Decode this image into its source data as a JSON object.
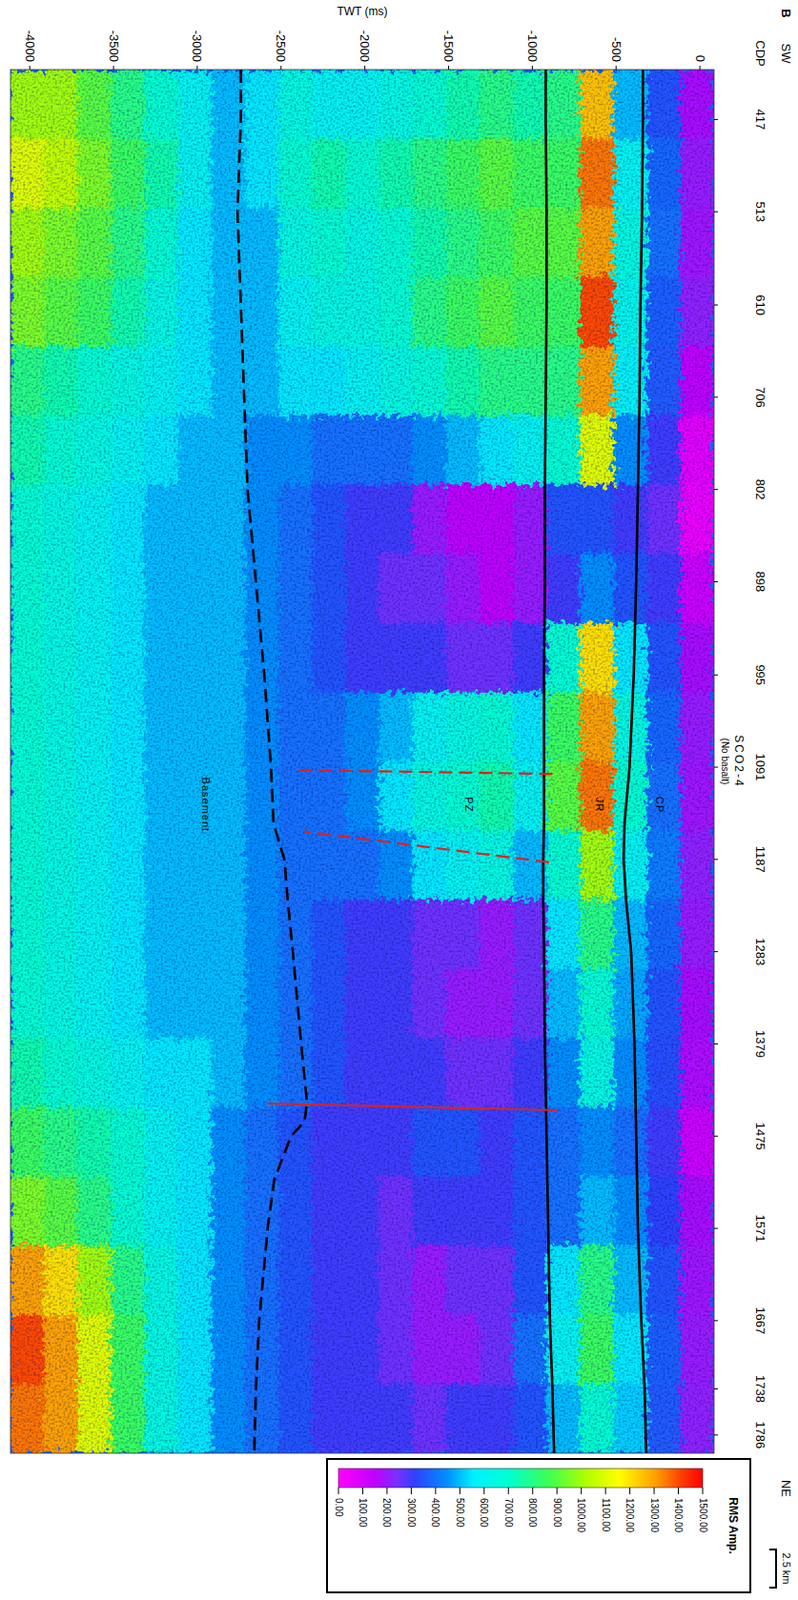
{
  "chart_data": {
    "type": "heatmap",
    "panel_label": "B",
    "title": "SCO2-4",
    "subtitle": "(No basalt)",
    "x_label": "CDP",
    "y_label": "TWT (ms)",
    "direction_labels": [
      "SW",
      "NE"
    ],
    "scale_bar": "2.5 km",
    "xlim": [
      365,
      1805
    ],
    "ylim": [
      -4115,
      85
    ],
    "xticks": [
      417,
      513,
      610,
      706,
      802,
      898,
      995,
      1091,
      1187,
      1283,
      1379,
      1475,
      1571,
      1667,
      1738,
      1786
    ],
    "yticks": [
      -4000,
      -3500,
      -3000,
      -2500,
      -2000,
      -1500,
      -1000,
      -500,
      0
    ],
    "x_bins": [
      365,
      437,
      509,
      581,
      653,
      725,
      797,
      869,
      941,
      1013,
      1085,
      1157,
      1229,
      1301,
      1373,
      1445,
      1517,
      1589,
      1661,
      1733,
      1805
    ],
    "y_bins": [
      85,
      -115,
      -315,
      -515,
      -715,
      -915,
      -1115,
      -1315,
      -1515,
      -1715,
      -1915,
      -2115,
      -2315,
      -2515,
      -2715,
      -2915,
      -3115,
      -3315,
      -3515,
      -3715,
      -3915,
      -4115
    ],
    "cells": [
      [
        180,
        200,
        190,
        210,
        150,
        60,
        40,
        120,
        180,
        200,
        190,
        210,
        200,
        180,
        170,
        120,
        180,
        190,
        200,
        210
      ],
      [
        350,
        380,
        400,
        370,
        360,
        300,
        250,
        300,
        350,
        380,
        400,
        420,
        380,
        350,
        340,
        300,
        320,
        350,
        370,
        360
      ],
      [
        500,
        600,
        650,
        620,
        580,
        450,
        300,
        350,
        550,
        650,
        700,
        600,
        500,
        480,
        450,
        400,
        450,
        500,
        550,
        520
      ],
      [
        1250,
        1350,
        1300,
        1400,
        1300,
        1100,
        350,
        450,
        1200,
        1300,
        1350,
        1000,
        800,
        700,
        650,
        450,
        500,
        800,
        850,
        700
      ],
      [
        800,
        850,
        900,
        850,
        800,
        700,
        350,
        300,
        700,
        850,
        900,
        700,
        550,
        500,
        450,
        400,
        400,
        550,
        600,
        500
      ],
      [
        750,
        850,
        900,
        850,
        800,
        600,
        200,
        200,
        300,
        550,
        600,
        500,
        250,
        250,
        300,
        350,
        350,
        350,
        400,
        350
      ],
      [
        800,
        900,
        850,
        900,
        800,
        550,
        150,
        150,
        250,
        700,
        750,
        650,
        200,
        200,
        250,
        300,
        300,
        250,
        250,
        300
      ],
      [
        750,
        850,
        800,
        850,
        750,
        500,
        150,
        200,
        250,
        650,
        700,
        600,
        250,
        200,
        250,
        350,
        300,
        250,
        200,
        300
      ],
      [
        700,
        800,
        750,
        800,
        700,
        450,
        200,
        250,
        300,
        600,
        650,
        550,
        250,
        250,
        300,
        350,
        300,
        200,
        200,
        250
      ],
      [
        650,
        750,
        700,
        700,
        650,
        400,
        300,
        250,
        300,
        500,
        550,
        450,
        300,
        300,
        300,
        300,
        250,
        250,
        250,
        300
      ],
      [
        600,
        700,
        650,
        650,
        600,
        400,
        300,
        300,
        300,
        450,
        450,
        400,
        300,
        300,
        300,
        300,
        300,
        300,
        300,
        300
      ],
      [
        600,
        750,
        700,
        650,
        550,
        400,
        350,
        350,
        350,
        400,
        400,
        400,
        350,
        350,
        350,
        300,
        300,
        300,
        300,
        300
      ],
      [
        650,
        700,
        650,
        600,
        550,
        450,
        400,
        400,
        400,
        400,
        400,
        400,
        400,
        400,
        400,
        350,
        350,
        350,
        350,
        350
      ],
      [
        550,
        550,
        500,
        500,
        500,
        450,
        450,
        450,
        450,
        450,
        450,
        450,
        450,
        450,
        450,
        400,
        400,
        400,
        400,
        400
      ],
      [
        500,
        500,
        500,
        500,
        500,
        500,
        500,
        500,
        500,
        500,
        500,
        500,
        500,
        500,
        500,
        450,
        450,
        450,
        450,
        450
      ],
      [
        600,
        600,
        550,
        550,
        550,
        500,
        500,
        500,
        500,
        500,
        500,
        500,
        500,
        500,
        550,
        550,
        550,
        550,
        550,
        550
      ],
      [
        700,
        750,
        700,
        650,
        600,
        550,
        500,
        500,
        500,
        500,
        500,
        500,
        500,
        500,
        550,
        600,
        600,
        650,
        650,
        650
      ],
      [
        800,
        850,
        800,
        750,
        650,
        600,
        550,
        550,
        550,
        550,
        550,
        550,
        550,
        550,
        600,
        700,
        700,
        800,
        850,
        850
      ],
      [
        900,
        950,
        900,
        850,
        700,
        650,
        600,
        600,
        600,
        600,
        600,
        600,
        600,
        600,
        650,
        750,
        800,
        1000,
        1100,
        1100
      ],
      [
        1000,
        1050,
        950,
        900,
        750,
        700,
        650,
        650,
        650,
        650,
        650,
        650,
        650,
        650,
        700,
        800,
        900,
        1200,
        1300,
        1300
      ],
      [
        1000,
        1100,
        1000,
        950,
        800,
        750,
        700,
        700,
        700,
        700,
        700,
        700,
        700,
        700,
        750,
        850,
        950,
        1300,
        1400,
        1350
      ]
    ],
    "colorbar": {
      "title": "RMS Amp.",
      "range": [
        0,
        1500
      ],
      "ticks": [
        {
          "value": 0,
          "label": "0.00"
        },
        {
          "value": 100,
          "label": "100.00"
        },
        {
          "value": 200,
          "label": "200.00"
        },
        {
          "value": 300,
          "label": "300.00"
        },
        {
          "value": 400,
          "label": "400.00"
        },
        {
          "value": 500,
          "label": "500.00"
        },
        {
          "value": 600,
          "label": "600.00"
        },
        {
          "value": 700,
          "label": "700.00"
        },
        {
          "value": 800,
          "label": "800.00"
        },
        {
          "value": 900,
          "label": "900.00"
        },
        {
          "value": 1000,
          "label": "1000.00"
        },
        {
          "value": 1100,
          "label": "1100.00"
        },
        {
          "value": 1200,
          "label": "1200.00"
        },
        {
          "value": 1300,
          "label": "1300.00"
        },
        {
          "value": 1400,
          "label": "1400.00"
        },
        {
          "value": 1500,
          "label": "1500.00"
        }
      ]
    },
    "horizons": [
      {
        "color": "#000000",
        "line_style": "solid",
        "x": [
          365,
          417,
          513,
          610,
          706,
          802,
          898,
          995,
          1091,
          1150,
          1187,
          1230,
          1283,
          1379,
          1475,
          1571,
          1667,
          1738,
          1805
        ],
        "values": [
          -340,
          -340,
          -345,
          -355,
          -360,
          -370,
          -380,
          -395,
          -420,
          -450,
          -455,
          -440,
          -410,
          -390,
          -380,
          -370,
          -350,
          -330,
          -320
        ]
      },
      {
        "color": "#000000",
        "line_style": "solid",
        "x": [
          365,
          417,
          513,
          610,
          706,
          802,
          898,
          995,
          1091,
          1150,
          1187,
          1230,
          1283,
          1379,
          1475,
          1571,
          1667,
          1738,
          1805
        ],
        "values": [
          -920,
          -920,
          -915,
          -915,
          -920,
          -925,
          -925,
          -930,
          -930,
          -930,
          -935,
          -935,
          -930,
          -925,
          -915,
          -905,
          -895,
          -880,
          -870
        ]
      },
      {
        "color": "#000000",
        "line_style": "dashed",
        "x": [
          365,
          417,
          513,
          610,
          706,
          802,
          898,
          995,
          1091,
          1150,
          1187,
          1230,
          1283,
          1379,
          1440,
          1460,
          1475,
          1520,
          1571,
          1667,
          1738,
          1805
        ],
        "values": [
          -2740,
          -2740,
          -2760,
          -2740,
          -2720,
          -2700,
          -2650,
          -2600,
          -2560,
          -2545,
          -2480,
          -2460,
          -2430,
          -2380,
          -2345,
          -2360,
          -2440,
          -2540,
          -2580,
          -2630,
          -2650,
          -2660
        ]
      }
    ],
    "faults": [
      {
        "color": "#e02020",
        "line_style": "dashed",
        "x": [
          1098,
          1094
        ],
        "values": [
          -880,
          -2420
        ]
      },
      {
        "color": "#e02020",
        "line_style": "dashed",
        "x": [
          1190,
          1158
        ],
        "values": [
          -900,
          -2360
        ]
      },
      {
        "color": "#e02020",
        "line_style": "solid",
        "x": [
          1448,
          1441
        ],
        "values": [
          -850,
          -2580
        ]
      }
    ],
    "labels": [
      {
        "text": "CP",
        "x": 1130,
        "y": -240
      },
      {
        "text": "JR",
        "x": 1130,
        "y": -600
      },
      {
        "text": "PZ",
        "x": 1130,
        "y": -1380
      },
      {
        "text": "Basement",
        "x": 1130,
        "y": -2950
      }
    ]
  }
}
